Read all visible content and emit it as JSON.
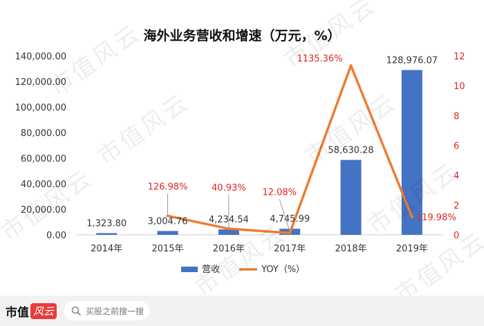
{
  "chart_data": {
    "type": "bar+line",
    "title": "海外业务营收和增速（万元，%）",
    "categories": [
      "2014年",
      "2015年",
      "2016年",
      "2017年",
      "2018年",
      "2019年"
    ],
    "series": [
      {
        "name": "营收",
        "type": "bar",
        "axis": "left",
        "color": "#4472c4",
        "values": [
          1323.8,
          3004.76,
          4234.54,
          4745.99,
          58630.28,
          128976.07
        ],
        "labels": [
          "1,323.80",
          "3,004.76",
          "4,234.54",
          "4,745.99",
          "58,630.28",
          "128,976.07"
        ]
      },
      {
        "name": "YOY（%）",
        "type": "line",
        "axis": "right",
        "color": "#ed7d31",
        "values": [
          null,
          1.2698,
          0.4093,
          0.1208,
          11.3536,
          1.1998
        ],
        "labels": [
          "",
          "126.98%",
          "40.93%",
          "12.08%",
          "1135.36%",
          "119.98%"
        ],
        "label_color": "#e02424"
      }
    ],
    "y_left": {
      "min": 0,
      "max": 140000,
      "ticks": [
        "0.00",
        "20,000.00",
        "40,000.00",
        "60,000.00",
        "80,000.00",
        "100,000.00",
        "120,000.00",
        "140,000.00"
      ]
    },
    "y_right": {
      "min": 0,
      "max": 12,
      "ticks": [
        "0",
        "2",
        "4",
        "6",
        "8",
        "10",
        "12"
      ],
      "color": "#e02424"
    },
    "grid": false,
    "legend": "bottom-center"
  },
  "watermark": "市值风云",
  "brand": {
    "name": "市值",
    "mark": "风云"
  },
  "search": {
    "placeholder": "买股之前搜一搜"
  }
}
